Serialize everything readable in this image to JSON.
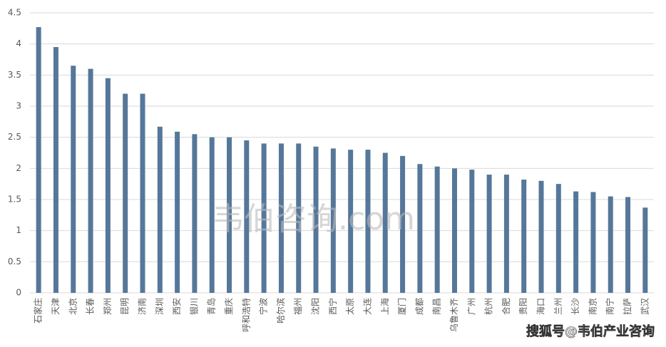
{
  "chart_data": {
    "type": "bar",
    "categories": [
      "石家庄",
      "天津",
      "北京",
      "长春",
      "郑州",
      "昆明",
      "济南",
      "深圳",
      "西安",
      "银川",
      "青岛",
      "重庆",
      "呼和浩特",
      "宁波",
      "哈尔滨",
      "福州",
      "沈阳",
      "西宁",
      "太原",
      "大连",
      "上海",
      "厦门",
      "成都",
      "南昌",
      "乌鲁木齐",
      "广州",
      "杭州",
      "合肥",
      "贵阳",
      "海口",
      "兰州",
      "长沙",
      "南京",
      "南宁",
      "拉萨",
      "武汉"
    ],
    "values": [
      4.27,
      3.95,
      3.65,
      3.6,
      3.45,
      3.2,
      3.2,
      2.67,
      2.59,
      2.55,
      2.5,
      2.5,
      2.45,
      2.4,
      2.4,
      2.4,
      2.35,
      2.32,
      2.3,
      2.3,
      2.25,
      2.2,
      2.07,
      2.03,
      2.0,
      1.98,
      1.9,
      1.9,
      1.82,
      1.8,
      1.75,
      1.63,
      1.62,
      1.55,
      1.54,
      1.37
    ],
    "color": "#55779a",
    "ylim": [
      0,
      4.5
    ],
    "yticks": [
      0,
      0.5,
      1,
      1.5,
      2,
      2.5,
      3,
      3.5,
      4,
      4.5
    ],
    "grid": true,
    "watermarks": [
      "韦伯咨询.com",
      "搜狐号@韦伯产业咨询"
    ]
  }
}
